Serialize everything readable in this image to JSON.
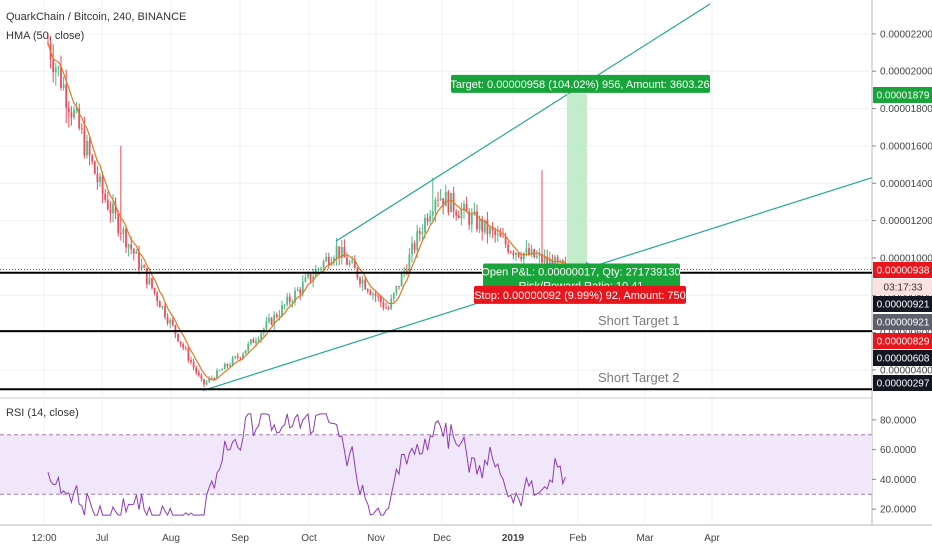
{
  "header": {
    "symbol_line": "QuarkChain / Bitcoin, 240, BINANCE",
    "indicator": "HMA (50, close)",
    "rsi_label": "RSI (14, close)"
  },
  "colors": {
    "up": "#53b987",
    "down": "#eb4d5c",
    "hma": "#e07a1f",
    "channel": "#26a69a",
    "rsi": "#8e3ab6",
    "rsi_band": "#f1e7fb",
    "target_green": "#19a33b",
    "stop_red": "#e8151d",
    "dark_tag": "#131722"
  },
  "chart_data": [
    {
      "type": "candlestick",
      "title": "QuarkChain / Bitcoin, 240, BINANCE",
      "xlabel": "",
      "ylabel": "",
      "x_tick_labels": [
        "12:00",
        "Jul",
        "Aug",
        "Sep",
        "Oct",
        "Nov",
        "Dec",
        "2019",
        "Feb",
        "Mar",
        "Apr"
      ],
      "y_tick_labels": [
        "0.00002200",
        "0.00002000",
        "0.00001800",
        "0.00001600",
        "0.00001400",
        "0.00001200",
        "0.00001000",
        "0.00000800",
        "0.00000600",
        "0.00000400"
      ],
      "y_ticks": [
        2.2e-05,
        2e-05,
        1.8e-05,
        1.6e-05,
        1.4e-05,
        1.2e-05,
        1e-05,
        8e-06,
        6e-06,
        4e-06
      ],
      "ylim": [
        2.5e-06,
        2.36e-05
      ],
      "grid": true,
      "price_path_waypoints": {
        "x": [
          "12:00",
          "Jul",
          "Aug (mid)",
          "Sep",
          "Oct (mid)",
          "Nov",
          "Dec",
          "2019",
          "Jan (late)"
        ],
        "y": [
          2.15e-05,
          1.35e-05,
          3.2e-06,
          4.8e-06,
          1.05e-05,
          7.2e-06,
          1.35e-05,
          1.05e-05,
          9.4e-06
        ]
      },
      "horizontal_lines": [
        {
          "value": 9.38e-06,
          "style": "dotted",
          "color": "#e8151d"
        },
        {
          "value": 9.21e-06,
          "style": "solid",
          "color": "#000000"
        },
        {
          "value": 6.08e-06,
          "style": "solid",
          "color": "#000000"
        },
        {
          "value": 2.97e-06,
          "style": "solid",
          "color": "#000000"
        }
      ],
      "annotations": [
        "Short Target 1",
        "Short Target 2"
      ],
      "price_tags": [
        {
          "text": "0.00001879",
          "kind": "green"
        },
        {
          "text": "0.00000938",
          "kind": "red"
        },
        {
          "text": "03:17:33",
          "kind": "light"
        },
        {
          "text": "0.00000921",
          "kind": "dark"
        },
        {
          "text": "0.00000921",
          "kind": "gray"
        },
        {
          "text": "0.00000829",
          "kind": "red"
        },
        {
          "text": "0.00000608",
          "kind": "dark"
        },
        {
          "text": "0.00000297",
          "kind": "dark"
        }
      ],
      "position_labels": {
        "target": "Target: 0.00000958 (104.02%) 956, Amount: 3603.26",
        "open_pnl": "Open P&L: 0.00000017, Qty: 271739130",
        "risk_reward": "Risk/Reward Ratio: 10.41",
        "stop": "Stop: 0.00000092 (9.99%) 92, Amount: 750"
      }
    },
    {
      "type": "line",
      "title": "RSI (14, close)",
      "y_tick_labels": [
        "80.0000",
        "60.0000",
        "40.0000",
        "20.0000"
      ],
      "y_ticks": [
        80,
        60,
        40,
        20
      ],
      "ylim": [
        12,
        88
      ],
      "bands": [
        30,
        70
      ],
      "grid": true
    }
  ]
}
